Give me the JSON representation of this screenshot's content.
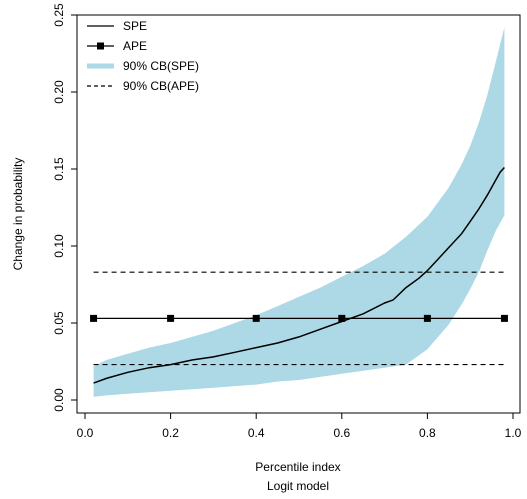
{
  "chart_data": {
    "type": "line",
    "title": "",
    "xlabel": "Percentile index",
    "xlabel2": "Logit model",
    "ylabel": "Change in probability",
    "xlim": [
      0.0,
      1.0
    ],
    "ylim": [
      0.0,
      0.25
    ],
    "xticks": [
      "0.0",
      "0.2",
      "0.4",
      "0.6",
      "0.8",
      "1.0"
    ],
    "xtick_values": [
      0.0,
      0.2,
      0.4,
      0.6,
      0.8,
      1.0
    ],
    "yticks": [
      "0.00",
      "0.05",
      "0.10",
      "0.15",
      "0.20",
      "0.25"
    ],
    "ytick_values": [
      0.0,
      0.05,
      0.1,
      0.15,
      0.2,
      0.25
    ],
    "grid": false,
    "legend_position": "top-left",
    "legend": [
      {
        "label": "SPE",
        "style": "solid-line"
      },
      {
        "label": "APE",
        "style": "line-with-square-markers"
      },
      {
        "label": "90% CB(SPE)",
        "style": "band"
      },
      {
        "label": "90% CB(APE)",
        "style": "dashed-line"
      }
    ],
    "colors": {
      "line": "#000000",
      "band": "#add8e6"
    },
    "spe": {
      "name": "SPE",
      "x": [
        0.02,
        0.05,
        0.1,
        0.15,
        0.2,
        0.25,
        0.3,
        0.35,
        0.4,
        0.45,
        0.5,
        0.55,
        0.6,
        0.65,
        0.7,
        0.72,
        0.75,
        0.78,
        0.8,
        0.82,
        0.85,
        0.88,
        0.9,
        0.92,
        0.94,
        0.96,
        0.97,
        0.98
      ],
      "y": [
        0.011,
        0.014,
        0.018,
        0.021,
        0.023,
        0.026,
        0.028,
        0.031,
        0.034,
        0.037,
        0.041,
        0.046,
        0.051,
        0.056,
        0.063,
        0.065,
        0.073,
        0.079,
        0.084,
        0.09,
        0.099,
        0.108,
        0.116,
        0.124,
        0.133,
        0.143,
        0.148,
        0.151
      ]
    },
    "spe_band": {
      "name": "90% CB(SPE)",
      "x": [
        0.02,
        0.05,
        0.1,
        0.15,
        0.2,
        0.25,
        0.3,
        0.35,
        0.4,
        0.45,
        0.5,
        0.55,
        0.6,
        0.65,
        0.7,
        0.75,
        0.8,
        0.85,
        0.88,
        0.9,
        0.92,
        0.94,
        0.96,
        0.98
      ],
      "lower": [
        0.002,
        0.003,
        0.004,
        0.005,
        0.006,
        0.007,
        0.008,
        0.009,
        0.01,
        0.012,
        0.013,
        0.015,
        0.017,
        0.019,
        0.021,
        0.023,
        0.033,
        0.049,
        0.062,
        0.072,
        0.083,
        0.097,
        0.11,
        0.12
      ],
      "upper": [
        0.022,
        0.026,
        0.03,
        0.034,
        0.037,
        0.041,
        0.045,
        0.05,
        0.055,
        0.061,
        0.067,
        0.073,
        0.08,
        0.087,
        0.095,
        0.106,
        0.119,
        0.138,
        0.153,
        0.165,
        0.18,
        0.198,
        0.22,
        0.242
      ]
    },
    "ape": {
      "name": "APE",
      "value": 0.053,
      "x_range": [
        0.02,
        0.98
      ],
      "marker_x": [
        0.02,
        0.2,
        0.4,
        0.6,
        0.8,
        0.98
      ]
    },
    "ape_band": {
      "name": "90% CB(APE)",
      "lower": 0.023,
      "upper": 0.083,
      "x_range": [
        0.02,
        0.98
      ]
    }
  }
}
